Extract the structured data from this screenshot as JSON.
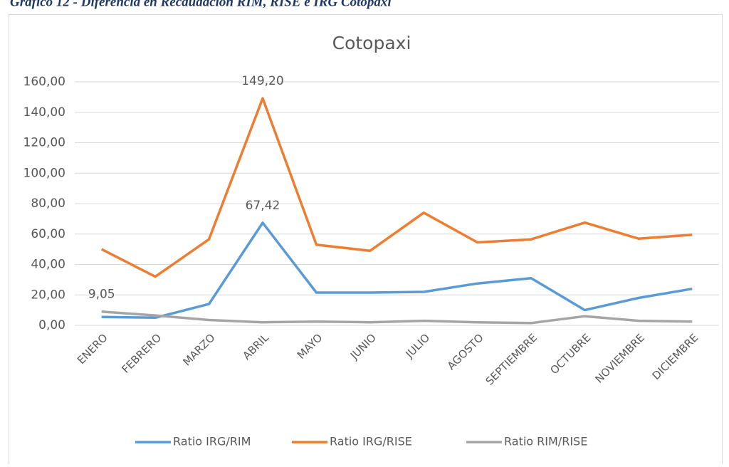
{
  "caption": "Gráfico 12 - Diferencia en Recaudación RIM, RISE e IRG Cotopaxi",
  "chart_data": {
    "type": "line",
    "title": "Cotopaxi",
    "categories": [
      "ENERO",
      "FEBRERO",
      "MARZO",
      "ABRIL",
      "MAYO",
      "JUNIO",
      "JULIO",
      "AGOSTO",
      "SEPTIEMBRE",
      "OCTUBRE",
      "NOVIEMBRE",
      "DICIEMBRE"
    ],
    "series": [
      {
        "name": "Ratio IRG/RIM",
        "color": "#5b9bd5",
        "values": [
          5.5,
          5,
          14,
          67.42,
          21.5,
          21.5,
          22,
          27.5,
          31,
          10,
          18,
          24
        ],
        "value_labels": [
          null,
          null,
          null,
          "67,42",
          null,
          null,
          null,
          null,
          null,
          null,
          null,
          null
        ]
      },
      {
        "name": "Ratio IRG/RISE",
        "color": "#ed7d31",
        "values": [
          50,
          32,
          56.5,
          149.2,
          53,
          49,
          74,
          54.5,
          56.5,
          67.5,
          57,
          59.5
        ],
        "value_labels": [
          null,
          null,
          null,
          "149,20",
          null,
          null,
          null,
          null,
          null,
          null,
          null,
          null
        ]
      },
      {
        "name": "Ratio RIM/RISE",
        "color": "#a5a5a5",
        "values": [
          9.05,
          6.5,
          3.5,
          2,
          2.5,
          2,
          3,
          2,
          1.5,
          6,
          3,
          2.5
        ],
        "value_labels": [
          "9,05",
          null,
          null,
          null,
          null,
          null,
          null,
          null,
          null,
          null,
          null,
          null
        ]
      }
    ],
    "ylim": [
      0,
      160
    ],
    "yticks": [
      {
        "value": 0,
        "label": "0,00"
      },
      {
        "value": 20,
        "label": "20,00"
      },
      {
        "value": 40,
        "label": "40,00"
      },
      {
        "value": 60,
        "label": "60,00"
      },
      {
        "value": 80,
        "label": "80,00"
      },
      {
        "value": 100,
        "label": "100,00"
      },
      {
        "value": 120,
        "label": "120,00"
      },
      {
        "value": 140,
        "label": "140,00"
      },
      {
        "value": 160,
        "label": "160,00"
      }
    ],
    "grid": true,
    "legend": "bottom"
  }
}
